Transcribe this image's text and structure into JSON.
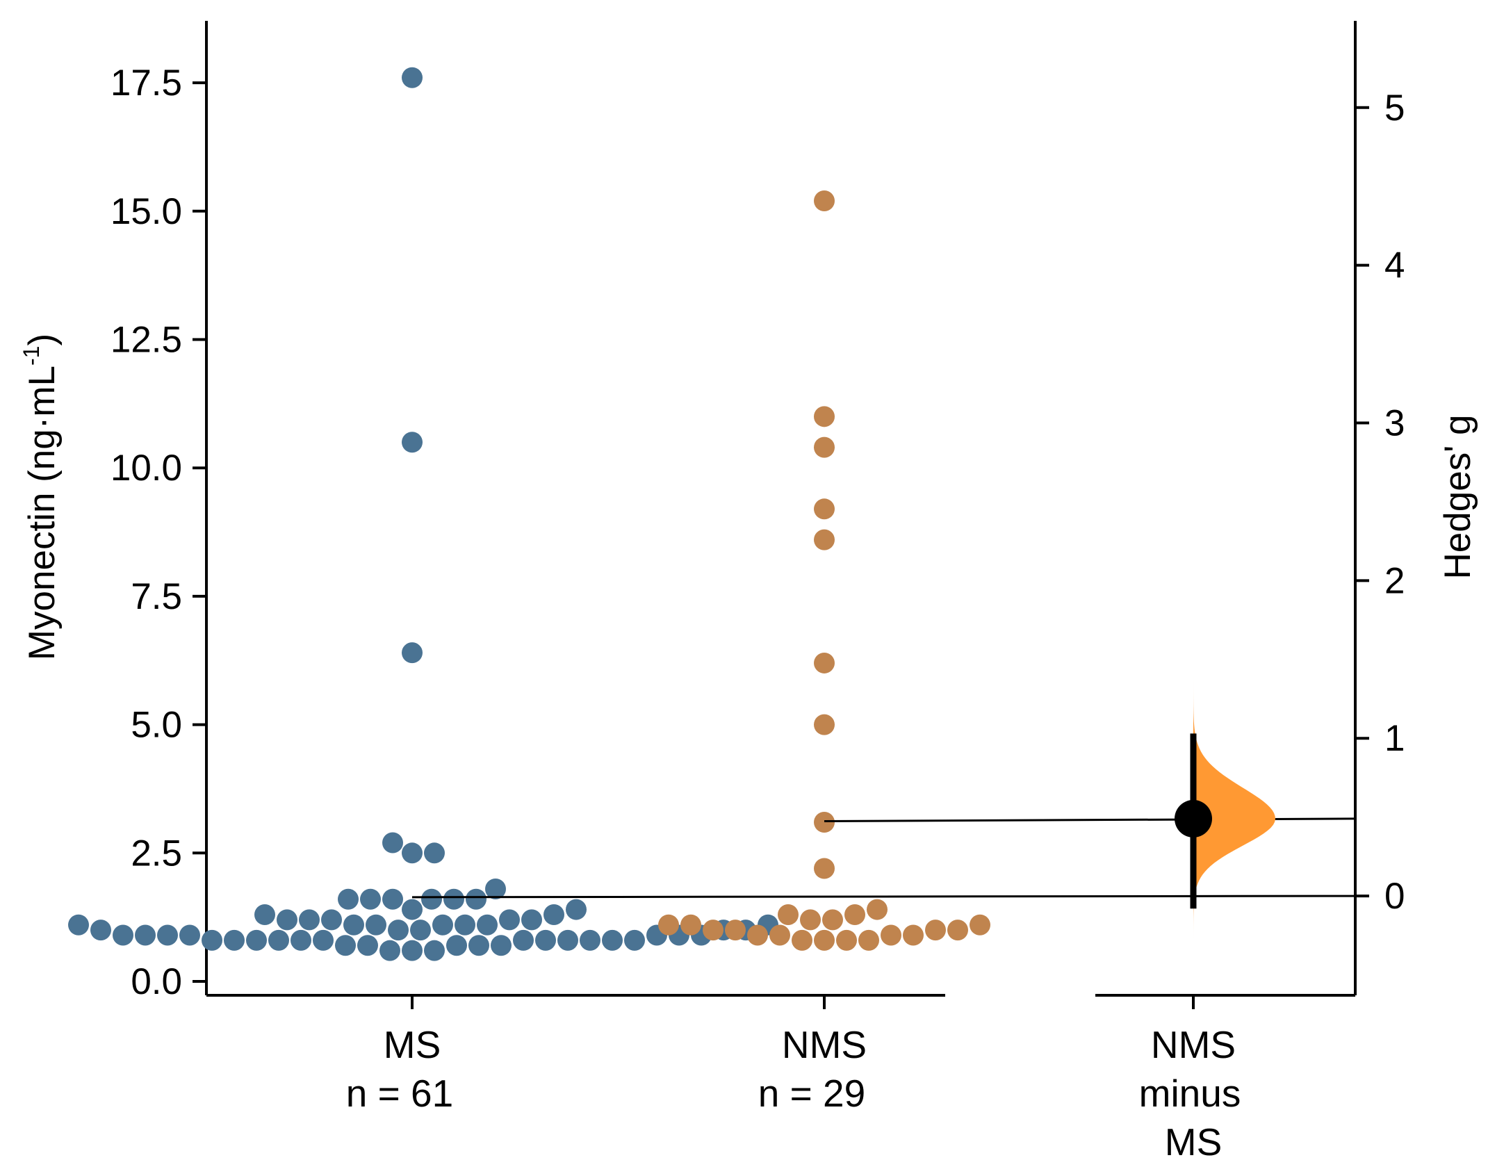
{
  "chart_data": {
    "type": "estimation-swarm",
    "left_axis": {
      "label": "Myonectin (ng·mL",
      "label_superscript": "-1",
      "label_close": ")",
      "ylim": [
        0,
        18.3
      ],
      "ticks": [
        0.0,
        2.5,
        5.0,
        7.5,
        10.0,
        12.5,
        15.0,
        17.5
      ],
      "tick_labels": [
        "0.0",
        "2.5",
        "5.0",
        "7.5",
        "10.0",
        "12.5",
        "15.0",
        "17.5"
      ]
    },
    "right_axis": {
      "label": "Hedges' g",
      "ylim": [
        -0.63,
        5.55
      ],
      "ticks": [
        0,
        1,
        2,
        3,
        4,
        5
      ],
      "tick_labels": [
        "0",
        "1",
        "2",
        "3",
        "4",
        "5"
      ]
    },
    "groups": [
      {
        "name": "MS",
        "n_label": "n = 61",
        "color": "#4a7393",
        "values": [
          17.6,
          10.5,
          6.4,
          2.7,
          2.5,
          2.5,
          1.8,
          1.6,
          1.6,
          1.6,
          1.6,
          1.6,
          1.6,
          1.4,
          1.4,
          1.3,
          1.3,
          1.2,
          1.2,
          1.2,
          1.2,
          1.2,
          1.1,
          1.1,
          1.1,
          1.1,
          1.1,
          1.1,
          1.1,
          1.0,
          1.0,
          1.0,
          1.0,
          1.0,
          0.9,
          0.9,
          0.9,
          0.9,
          0.9,
          0.9,
          0.9,
          0.8,
          0.8,
          0.8,
          0.8,
          0.8,
          0.8,
          0.8,
          0.8,
          0.8,
          0.8,
          0.8,
          0.8,
          0.7,
          0.7,
          0.7,
          0.7,
          0.7,
          0.6,
          0.6,
          0.6
        ]
      },
      {
        "name": "NMS",
        "n_label": "n = 29",
        "color": "#c0844e",
        "values": [
          15.2,
          11.0,
          10.4,
          9.2,
          8.6,
          6.2,
          5.0,
          3.1,
          2.2,
          1.4,
          1.3,
          1.3,
          1.2,
          1.2,
          1.1,
          1.1,
          1.1,
          1.0,
          1.0,
          1.0,
          1.0,
          0.9,
          0.9,
          0.9,
          0.9,
          0.8,
          0.8,
          0.8,
          0.8
        ]
      }
    ],
    "effect": {
      "label_lines": [
        "NMS",
        "minus",
        "MS"
      ],
      "hedges_g": 0.49,
      "ci": [
        -0.08,
        1.03
      ],
      "distribution_range": [
        -0.33,
        1.9
      ],
      "color": "#ff9933",
      "reference_mean_control": 1.64,
      "reference_mean_test": 3.12
    }
  }
}
